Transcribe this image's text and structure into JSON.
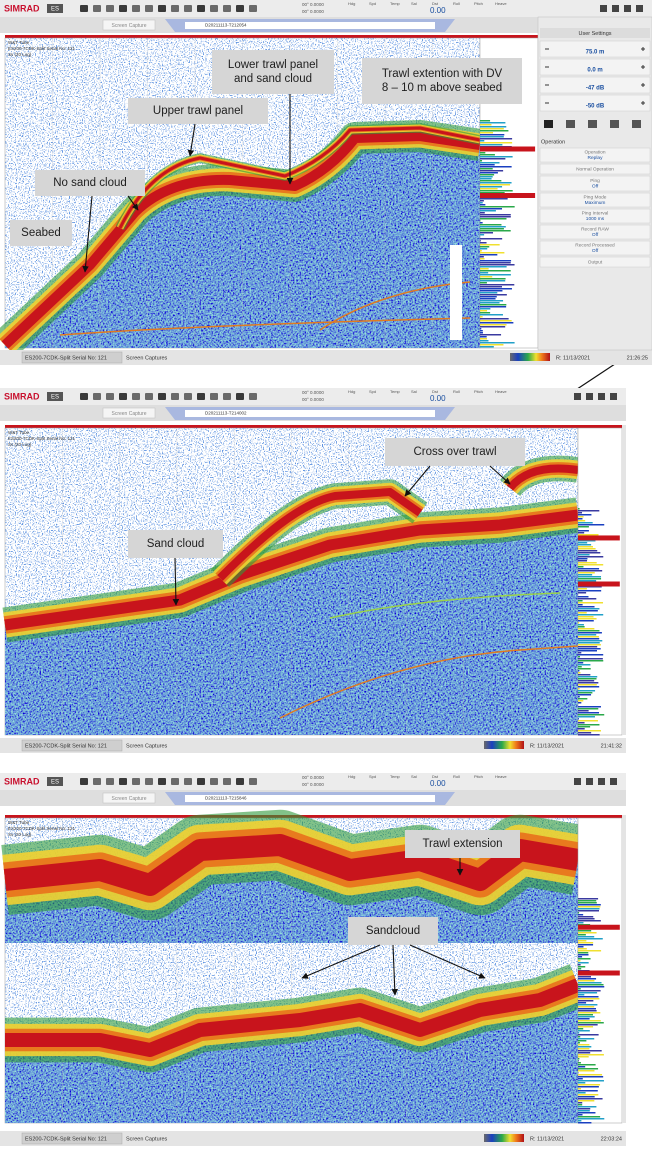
{
  "panels": [
    {
      "toolbar": {
        "brand": "SIMRAD",
        "mode": "ES",
        "capture": "Screen Capture",
        "file": "D20211113-T212054",
        "position": [
          "00° 0.0000",
          "00° 0.0000"
        ],
        "readouts": [
          "Hdg",
          "Spd",
          "Temp",
          "Sal",
          "Dst",
          "Roll",
          "Pitch",
          "Heave"
        ],
        "depth": "0.00"
      },
      "echogram": {
        "header": [
          "W&T Tube",
          "ES200-7CDK-Split Serial No: 121",
          "Sv (20 Log)"
        ]
      },
      "annotations": [
        {
          "lines": [
            "Lower trawl panel",
            "and sand cloud"
          ]
        },
        {
          "lines": [
            "Trawl extention with DV",
            "8 – 10 m above seabed"
          ]
        },
        {
          "lines": [
            "Upper trawl panel"
          ]
        },
        {
          "lines": [
            "No sand cloud"
          ]
        },
        {
          "lines": [
            "Seabed"
          ]
        }
      ],
      "sidebar": {
        "title": "User Settings",
        "values": [
          "75.0 m",
          "0.0 m",
          "-47 dB",
          "-50 dB"
        ],
        "section": "Operation",
        "buttons": [
          {
            "lines": [
              "Operation",
              "Replay"
            ]
          },
          {
            "lines": [
              "Normal Operation"
            ]
          },
          {
            "lines": [
              "Ping",
              "Off"
            ]
          },
          {
            "lines": [
              "Ping Mode",
              "Maximum"
            ]
          },
          {
            "lines": [
              "Ping Interval",
              "1000 ms"
            ]
          },
          {
            "lines": [
              "Record RAW",
              "Off"
            ]
          },
          {
            "lines": [
              "Record Processed",
              "Off"
            ]
          },
          {
            "lines": [
              "Output"
            ]
          }
        ]
      },
      "status": {
        "device": "ES200-7CDK-Split Serial No: 121",
        "tab": "Screen Captures",
        "date": "R: 11/13/2021",
        "time": "21:26:25"
      }
    },
    {
      "toolbar": {
        "brand": "SIMRAD",
        "mode": "ES",
        "capture": "Screen Capture",
        "file": "D20211113-T214002",
        "position": [
          "00° 0.0000",
          "00° 0.0000"
        ],
        "readouts": [
          "Hdg",
          "Spd",
          "Temp",
          "Sal",
          "Dst",
          "Roll",
          "Pitch",
          "Heave"
        ],
        "depth": "0.00"
      },
      "echogram": {
        "header": [
          "W&T Tube",
          "ES200-7CDK-Split Serial No: 121",
          "Sv (20 Log)"
        ]
      },
      "annotations": [
        {
          "lines": [
            "Cross over trawl"
          ]
        },
        {
          "lines": [
            "Sand cloud"
          ]
        }
      ],
      "status": {
        "device": "ES200-7CDK-Split Serial No: 121",
        "tab": "Screen Captures",
        "date": "R: 11/13/2021",
        "time": "21:41:32"
      }
    },
    {
      "toolbar": {
        "brand": "SIMRAD",
        "mode": "ES",
        "capture": "Screen Capture",
        "file": "D20211113-T215846",
        "position": [
          "00° 0.0000",
          "00° 0.0000"
        ],
        "readouts": [
          "Hdg",
          "Spd",
          "Temp",
          "Sal",
          "Dst",
          "Roll",
          "Pitch",
          "Heave"
        ],
        "depth": "0.00"
      },
      "echogram": {
        "header": [
          "W&T Tube",
          "ES200-7CDK-Split Serial No: 121",
          "Sv (20 Log)"
        ]
      },
      "annotations": [
        {
          "lines": [
            "Trawl extension"
          ]
        },
        {
          "lines": [
            "Sandcloud"
          ]
        }
      ],
      "status": {
        "device": "ES200-7CDK-Split Serial No: 121",
        "tab": "Screen Captures",
        "date": "R: 11/13/2021",
        "time": "22:03:24"
      }
    }
  ]
}
